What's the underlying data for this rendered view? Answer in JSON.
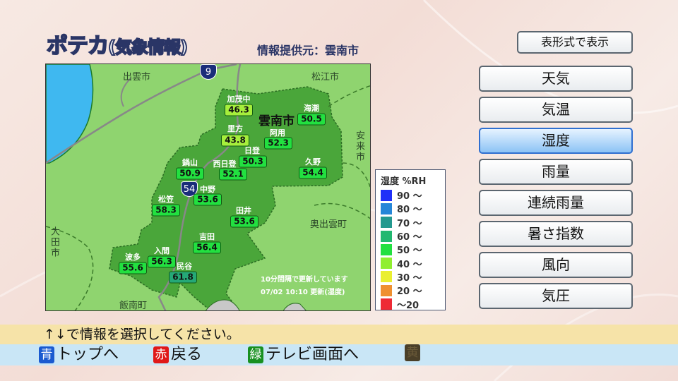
{
  "header": {
    "title_main": "ポテカ",
    "title_sub": "(気象情報)",
    "provider": "情報提供元：雲南市"
  },
  "map": {
    "places": {
      "izumo": "出雲市",
      "matsue": "松江市",
      "yasugi": "安来市",
      "okuizumo": "奥出雲町",
      "oda": "大田市",
      "iinan": "飯南町",
      "unnan": "雲南市"
    },
    "routes": {
      "r9": "9",
      "r54": "54"
    },
    "stations": [
      {
        "name": "加茂中",
        "value": "46.3",
        "color": "#a6ef3c"
      },
      {
        "name": "海潮",
        "value": "50.5",
        "color": "#22e040"
      },
      {
        "name": "里方",
        "value": "43.8",
        "color": "#a6ef3c"
      },
      {
        "name": "阿用",
        "value": "52.3",
        "color": "#22e040"
      },
      {
        "name": "日登",
        "value": "50.3",
        "color": "#22e040"
      },
      {
        "name": "西日登",
        "value": "52.1",
        "color": "#22e040"
      },
      {
        "name": "鍋山",
        "value": "50.9",
        "color": "#22e040"
      },
      {
        "name": "久野",
        "value": "54.4",
        "color": "#22e040"
      },
      {
        "name": "中野",
        "value": "53.6",
        "color": "#22e040"
      },
      {
        "name": "松笠",
        "value": "58.3",
        "color": "#22e040"
      },
      {
        "name": "田井",
        "value": "53.6",
        "color": "#22e040"
      },
      {
        "name": "吉田",
        "value": "56.4",
        "color": "#22e040"
      },
      {
        "name": "入間",
        "value": "56.3",
        "color": "#22e040"
      },
      {
        "name": "波多",
        "value": "55.6",
        "color": "#22e040"
      },
      {
        "name": "民谷",
        "value": "61.8",
        "color": "#25a877"
      }
    ],
    "update_note": "10分間隔で更新しています",
    "update_time": "07/02 10:10 更新(湿度)"
  },
  "legend": {
    "title": "湿度 %RH",
    "items": [
      {
        "label": "90 〜",
        "color": "#2030f8"
      },
      {
        "label": "80 〜",
        "color": "#2586d8"
      },
      {
        "label": "70 〜",
        "color": "#23998f"
      },
      {
        "label": "60 〜",
        "color": "#22b870"
      },
      {
        "label": "50 〜",
        "color": "#22e040"
      },
      {
        "label": "40 〜",
        "color": "#90ef30"
      },
      {
        "label": "30 〜",
        "color": "#eaef30"
      },
      {
        "label": "20 〜",
        "color": "#ef9030"
      },
      {
        "label": "〜20",
        "color": "#ee2a35"
      }
    ]
  },
  "sidebar": {
    "table_button": "表形式で表示",
    "selected": "湿度",
    "items": [
      "天気",
      "気温",
      "湿度",
      "雨量",
      "連続雨量",
      "暑さ指数",
      "風向",
      "気圧"
    ]
  },
  "footer": {
    "hint": "↑↓で情報を選択してください。",
    "keys": [
      {
        "key": "青",
        "label": "トップへ",
        "color": "#1a5ad0"
      },
      {
        "key": "赤",
        "label": "戻る",
        "color": "#e01818"
      },
      {
        "key": "緑",
        "label": "テレビ画面へ",
        "color": "#189020"
      },
      {
        "key": "黄",
        "label": "",
        "color": "#4a3f28"
      }
    ]
  }
}
